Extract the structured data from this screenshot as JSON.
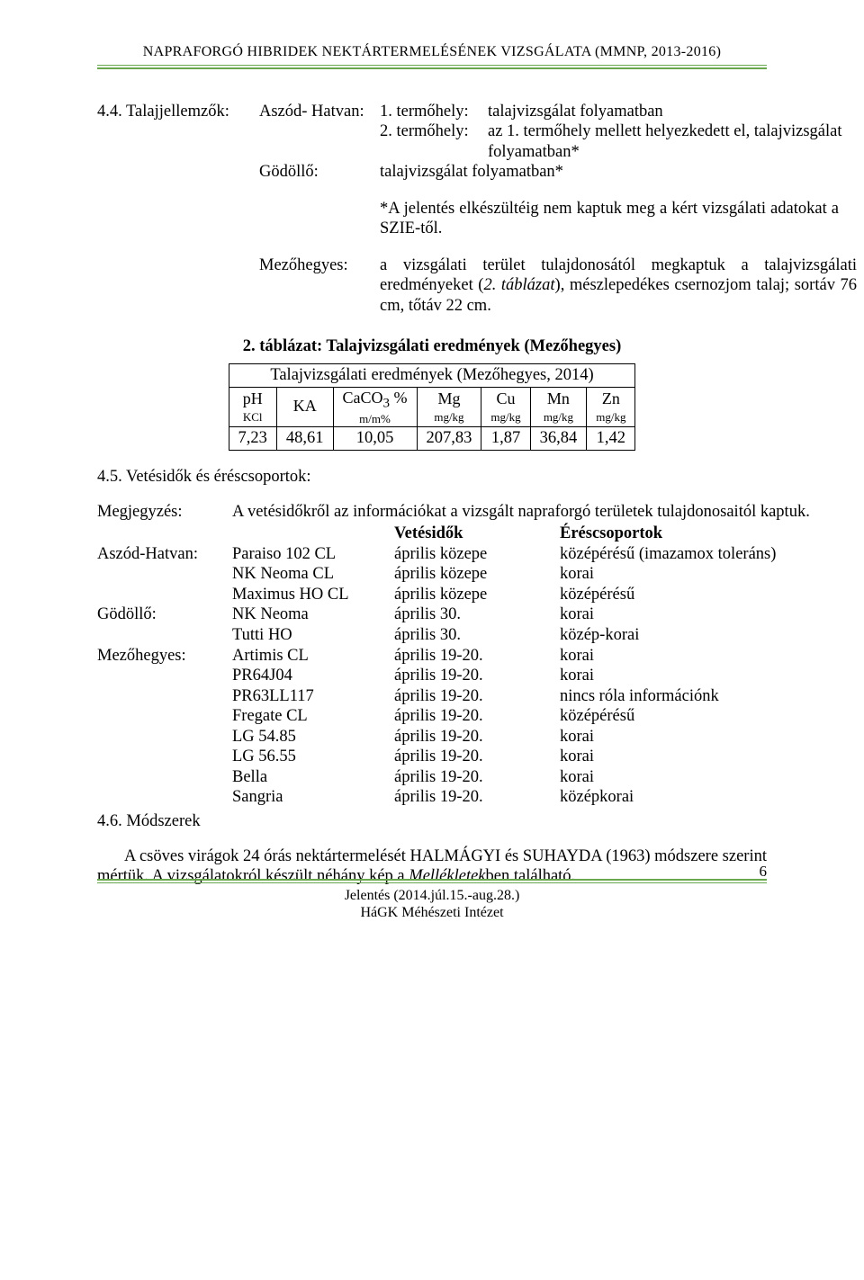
{
  "header": {
    "running_title": "NAPRAFORGÓ HIBRIDEK NEKTÁRTERMELÉSÉNEK VIZSGÁLATA (MMNP, 2013-2016)"
  },
  "sec44": {
    "label": "4.4. Talajjellemzők:",
    "aszod_label": "Aszód- Hatvan:",
    "l1a": "1. termőhely:",
    "l1b": "talajvizsgálat folyamatban",
    "l2a": "2. termőhely:",
    "l2b": "az 1. termőhely mellett helyezkedett el, talajvizsgálat folyamatban*",
    "godollo_label": "Gödöllő:",
    "godollo_text": "talajvizsgálat folyamatban*",
    "footnote": "*A jelentés elkészültéig nem kaptuk meg a kért vizsgálati adatokat a SZIE-től.",
    "mezo_label": "Mezőhegyes:",
    "mezo_text_a": "a vizsgálati terület tulajdonosától megkaptuk a talajvizsgálati eredményeket (",
    "mezo_text_b": "2. táblázat",
    "mezo_text_c": "), mészlepedékes csernozjom talaj; sortáv 76 cm, tőtáv 22 cm."
  },
  "table2": {
    "caption": "2. táblázat: Talajvizsgálati eredmények (Mezőhegyes)",
    "title_row": "Talajvizsgálati eredmények (Mezőhegyes, 2014)",
    "columns": [
      {
        "top": "pH",
        "sub": "KCl"
      },
      {
        "top": "KA",
        "sub": ""
      },
      {
        "top": "CaCO₃ %",
        "sub": "m/m%"
      },
      {
        "top": "Mg",
        "sub": "mg/kg"
      },
      {
        "top": "Cu",
        "sub": "mg/kg"
      },
      {
        "top": "Mn",
        "sub": "mg/kg"
      },
      {
        "top": "Zn",
        "sub": "mg/kg"
      }
    ],
    "row": [
      "7,23",
      "48,61",
      "10,05",
      "207,83",
      "1,87",
      "36,84",
      "1,42"
    ],
    "border_color": "#000000",
    "text_color": "#000000"
  },
  "sec45": {
    "title": "4.5. Vetésidők és éréscsoportok:",
    "note_label": "Megjegyzés:",
    "note_text": "A vetésidőkről az információkat a vizsgált napraforgó területek tulajdonosaitól kaptuk.",
    "hdr_vet": "Vetésidők",
    "hdr_eres": "Éréscsoportok",
    "rows": [
      {
        "loc": "Aszód-Hatvan:",
        "hybrid": "Paraiso 102 CL",
        "date": "április közepe",
        "group": "középérésű (imazamox toleráns)"
      },
      {
        "loc": "",
        "hybrid": "NK Neoma CL",
        "date": "április közepe",
        "group": "korai"
      },
      {
        "loc": "",
        "hybrid": "Maximus HO CL",
        "date": "április közepe",
        "group": "középérésű"
      },
      {
        "loc": "Gödöllő:",
        "hybrid": "NK Neoma",
        "date": "április 30.",
        "group": "korai"
      },
      {
        "loc": "",
        "hybrid": "Tutti HO",
        "date": "április 30.",
        "group": "közép-korai"
      },
      {
        "loc": "Mezőhegyes:",
        "hybrid": "Artimis CL",
        "date": "április 19-20.",
        "group": "korai"
      },
      {
        "loc": "",
        "hybrid": "PR64J04",
        "date": "április 19-20.",
        "group": "korai"
      },
      {
        "loc": "",
        "hybrid": "PR63LL117",
        "date": "április 19-20.",
        "group": "nincs róla információnk"
      },
      {
        "loc": "",
        "hybrid": "Fregate CL",
        "date": "április 19-20.",
        "group": "középérésű"
      },
      {
        "loc": "",
        "hybrid": "LG 54.85",
        "date": "április 19-20.",
        "group": "korai"
      },
      {
        "loc": "",
        "hybrid": "LG 56.55",
        "date": "április 19-20.",
        "group": "korai"
      },
      {
        "loc": "",
        "hybrid": "Bella",
        "date": "április 19-20.",
        "group": "korai"
      },
      {
        "loc": "",
        "hybrid": "Sangria",
        "date": "április 19-20.",
        "group": "középkorai"
      }
    ]
  },
  "sec46": {
    "title": "4.6. Módszerek",
    "para_a": "A csöves virágok 24 órás nektártermelését HALMÁGYI és SUHAYDA (1963) módszere szerint mértük. A vizsgálatokról készült néhány kép a ",
    "para_b": "Mellékletek",
    "para_c": "ben található."
  },
  "footer": {
    "line1": "Jelentés (2014.júl.15.-aug.28.)",
    "line2": "HáGK Méhészeti Intézet",
    "page": "6",
    "rule_color": "#6aa84f"
  }
}
